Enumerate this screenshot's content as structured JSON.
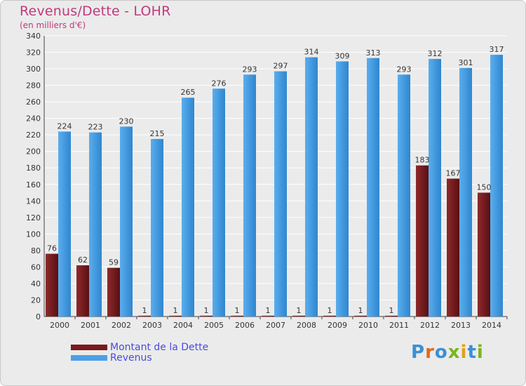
{
  "header": {
    "title": "Revenus/Dette - LOHR",
    "subtitle": "(en milliers d'€)"
  },
  "legend": {
    "debt_label": "Montant de la Dette",
    "revenue_label": "Revenus"
  },
  "logo": {
    "text": "Proxiti"
  },
  "colors": {
    "debt": "#7a1a1c",
    "revenue": "#4da0e6",
    "grid": "#ffffff",
    "background": "#ebebeb",
    "title": "#c0397d",
    "legend_text": "#4a4ae0"
  },
  "chart_data": {
    "type": "bar",
    "title": "Revenus/Dette - LOHR",
    "ylabel": "(en milliers d'€)",
    "xlabel": "",
    "ylim": [
      0,
      340
    ],
    "ytick_step": 20,
    "grid": true,
    "categories": [
      "2000",
      "2001",
      "2002",
      "2003",
      "2004",
      "2005",
      "2006",
      "2007",
      "2008",
      "2009",
      "2010",
      "2011",
      "2012",
      "2013",
      "2014"
    ],
    "series": [
      {
        "name": "Montant de la Dette",
        "values": [
          76,
          62,
          59,
          1,
          1,
          1,
          1,
          1,
          1,
          1,
          1,
          1,
          183,
          167,
          150
        ]
      },
      {
        "name": "Revenus",
        "values": [
          224,
          223,
          230,
          215,
          265,
          276,
          293,
          297,
          314,
          309,
          313,
          293,
          312,
          301,
          317
        ]
      }
    ]
  }
}
